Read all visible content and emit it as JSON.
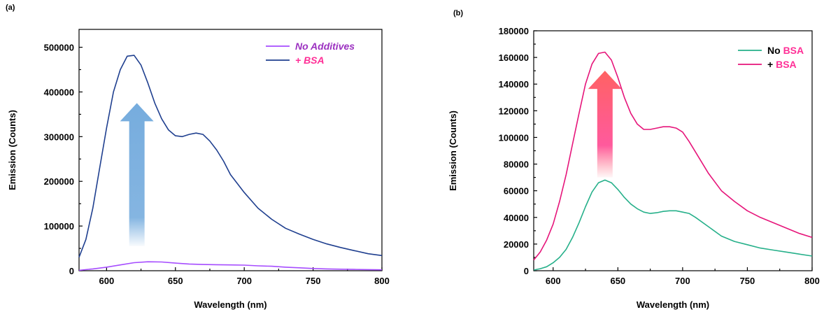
{
  "chart_data": [
    {
      "panel": "(a)",
      "type": "line",
      "xlabel": "Wavelength (nm)",
      "ylabel": "Emission (Counts)",
      "xlim": [
        580,
        800
      ],
      "ylim": [
        0,
        540000
      ],
      "xticks": [
        600,
        650,
        700,
        750,
        800
      ],
      "yticks": [
        0,
        100000,
        200000,
        300000,
        400000,
        500000
      ],
      "legend_position": "top-right",
      "arrow": {
        "color": "#6fa8dc",
        "x": 622,
        "y_from": 55000,
        "y_to": 375000
      },
      "series": [
        {
          "name": "No Additives",
          "name_parts": [
            {
              "text": "No Additives",
              "color": "#9b30c0",
              "italic": true
            }
          ],
          "color": "#a64dff",
          "x": [
            580,
            590,
            600,
            610,
            620,
            630,
            640,
            650,
            660,
            670,
            680,
            690,
            700,
            710,
            720,
            730,
            740,
            750,
            760,
            770,
            780,
            790,
            800
          ],
          "y": [
            1000,
            4000,
            8000,
            13000,
            18000,
            20000,
            19500,
            17000,
            15000,
            14000,
            13500,
            13000,
            12500,
            11000,
            10000,
            8000,
            6500,
            5000,
            4000,
            3500,
            3000,
            2500,
            2000
          ]
        },
        {
          "name": "+ BSA",
          "name_parts": [
            {
              "text": "+ BSA",
              "color": "#ff2e96",
              "italic": true
            }
          ],
          "color": "#1f3f8f",
          "x": [
            580,
            585,
            590,
            595,
            600,
            605,
            610,
            615,
            620,
            625,
            630,
            635,
            640,
            645,
            650,
            655,
            660,
            665,
            670,
            675,
            680,
            685,
            690,
            700,
            710,
            720,
            730,
            740,
            750,
            760,
            770,
            780,
            790,
            800
          ],
          "y": [
            30000,
            70000,
            140000,
            230000,
            320000,
            400000,
            450000,
            480000,
            482000,
            460000,
            420000,
            375000,
            340000,
            315000,
            302000,
            300000,
            305000,
            308000,
            305000,
            290000,
            270000,
            245000,
            215000,
            175000,
            140000,
            115000,
            95000,
            82000,
            70000,
            60000,
            52000,
            45000,
            38000,
            34000
          ]
        }
      ]
    },
    {
      "panel": "(b)",
      "type": "line",
      "xlabel": "Wavelength (nm)",
      "ylabel": "Emission (Counts)",
      "xlim": [
        585,
        800
      ],
      "ylim": [
        0,
        180000
      ],
      "xticks": [
        600,
        650,
        700,
        750,
        800
      ],
      "yticks": [
        0,
        20000,
        40000,
        60000,
        80000,
        100000,
        120000,
        140000,
        160000,
        180000
      ],
      "legend_position": "top-right",
      "arrow": {
        "color": "#ff4f6f",
        "x": 640,
        "y_from": 70000,
        "y_to": 150000
      },
      "series": [
        {
          "name": "No BSA",
          "name_parts": [
            {
              "text": "No ",
              "color": "#000000",
              "italic": false
            },
            {
              "text": "BSA",
              "color": "#ff2e96",
              "italic": false
            }
          ],
          "color": "#26b08a",
          "x": [
            585,
            590,
            595,
            600,
            605,
            610,
            615,
            620,
            625,
            630,
            635,
            640,
            645,
            650,
            655,
            660,
            665,
            670,
            675,
            680,
            685,
            690,
            695,
            700,
            705,
            710,
            720,
            730,
            740,
            750,
            760,
            770,
            780,
            790,
            800
          ],
          "y": [
            500,
            1500,
            3000,
            6000,
            10000,
            16000,
            25000,
            36000,
            48000,
            59000,
            66000,
            68000,
            66000,
            61000,
            55000,
            50000,
            46500,
            44000,
            43000,
            43500,
            44500,
            45000,
            45000,
            44000,
            43000,
            40000,
            33000,
            26000,
            22000,
            19500,
            17000,
            15500,
            14000,
            12500,
            11000
          ]
        },
        {
          "name": "+ BSA",
          "name_parts": [
            {
              "text": "+ ",
              "color": "#000000",
              "italic": false
            },
            {
              "text": "BSA",
              "color": "#ff2e96",
              "italic": false
            }
          ],
          "color": "#e6157a",
          "x": [
            585,
            590,
            595,
            600,
            605,
            610,
            615,
            620,
            625,
            630,
            635,
            640,
            645,
            650,
            655,
            660,
            665,
            670,
            675,
            680,
            685,
            690,
            695,
            700,
            705,
            710,
            720,
            730,
            740,
            750,
            760,
            770,
            780,
            790,
            800
          ],
          "y": [
            8000,
            14000,
            23000,
            35000,
            52000,
            72000,
            95000,
            118000,
            140000,
            155000,
            163000,
            164000,
            158000,
            145000,
            130000,
            118000,
            110000,
            106000,
            106000,
            107000,
            108000,
            108000,
            107000,
            104000,
            97000,
            89000,
            73000,
            60000,
            52000,
            45000,
            40000,
            36000,
            32000,
            28000,
            25000
          ]
        }
      ]
    }
  ]
}
